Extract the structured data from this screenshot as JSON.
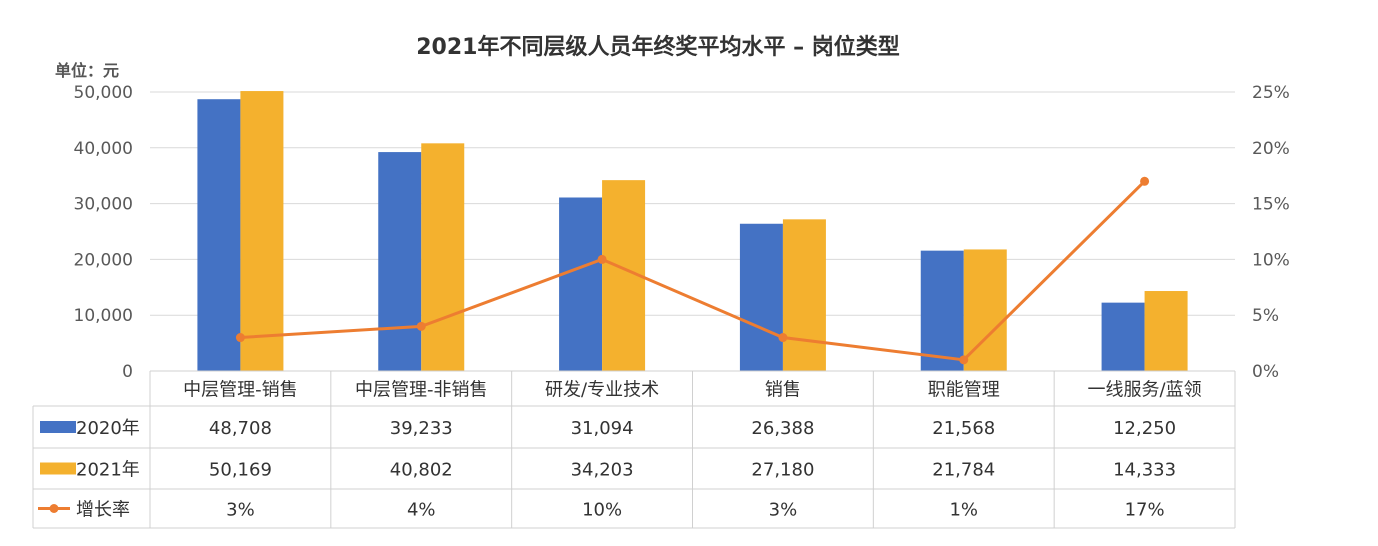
{
  "chart_data": {
    "type": "bar",
    "title": "2021年不同层级人员年终奖平均水平  –  岗位类型",
    "unit_label": "单位：元",
    "categories": [
      "中层管理-销售",
      "中层管理-非销售",
      "研发/专业技术",
      "销售",
      "职能管理",
      "一线服务/蓝领"
    ],
    "series": [
      {
        "name": "2020年",
        "type": "bar",
        "axis": "left",
        "color": "#4472C4",
        "values": [
          48708,
          39233,
          31094,
          26388,
          21568,
          12250
        ]
      },
      {
        "name": "2021年",
        "type": "bar",
        "axis": "left",
        "color": "#F4B12E",
        "values": [
          50169,
          40802,
          34203,
          27180,
          21784,
          14333
        ]
      },
      {
        "name": "增长率",
        "type": "line",
        "axis": "right",
        "color": "#ED7D31",
        "values": [
          3,
          4,
          10,
          3,
          1,
          17
        ]
      }
    ],
    "table_rows": [
      [
        "48,708",
        "39,233",
        "31,094",
        "26,388",
        "21,568",
        "12,250"
      ],
      [
        "50,169",
        "40,802",
        "34,203",
        "27,180",
        "21,784",
        "14,333"
      ],
      [
        "3%",
        "4%",
        "10%",
        "3%",
        "1%",
        "17%"
      ]
    ],
    "y_left_ticks": [
      "0",
      "10,000",
      "20,000",
      "30,000",
      "40,000",
      "50,000"
    ],
    "y_right_ticks": [
      "0%",
      "5%",
      "10%",
      "15%",
      "20%",
      "25%"
    ],
    "ylim_left": [
      0,
      50000
    ],
    "ylim_right": [
      0,
      25
    ],
    "grid": true
  }
}
